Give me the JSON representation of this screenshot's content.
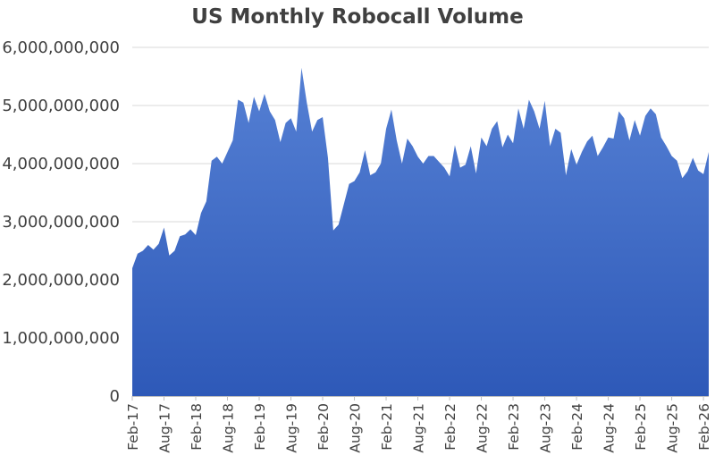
{
  "chart_data": {
    "type": "area",
    "title": "US Monthly Robocall Volume",
    "xlabel": "",
    "ylabel": "",
    "ylim": [
      0,
      6000000000
    ],
    "grid": true,
    "color": "#3f6dc4",
    "gradient": [
      "#5580d4",
      "#2e59b8"
    ],
    "ytick_values": [
      0,
      1000000000,
      2000000000,
      3000000000,
      4000000000,
      5000000000,
      6000000000
    ],
    "ytick_labels": [
      "0",
      "1,000,000,000",
      "2,000,000,000",
      "3,000,000,000",
      "4,000,000,000",
      "5,000,000,000",
      "6,000,000,000"
    ],
    "xtick_labels": [
      "Feb-17",
      "Aug-17",
      "Feb-18",
      "Aug-18",
      "Feb-19",
      "Aug-19",
      "Feb-20",
      "Aug-20",
      "Feb-21",
      "Aug-21",
      "Feb-22",
      "Aug-22",
      "Feb-23",
      "Aug-23",
      "Feb-24",
      "Aug-24",
      "Feb-25",
      "Aug-25",
      "Feb-26"
    ],
    "x_start": "Feb-17",
    "values": [
      2200000000,
      2450000000,
      2500000000,
      2600000000,
      2520000000,
      2620000000,
      2900000000,
      2420000000,
      2500000000,
      2750000000,
      2780000000,
      2870000000,
      2770000000,
      3150000000,
      3350000000,
      4050000000,
      4120000000,
      4000000000,
      4200000000,
      4400000000,
      5100000000,
      5050000000,
      4700000000,
      5150000000,
      4900000000,
      5200000000,
      4900000000,
      4750000000,
      4370000000,
      4700000000,
      4780000000,
      4550000000,
      5650000000,
      5050000000,
      4550000000,
      4750000000,
      4800000000,
      4100000000,
      2850000000,
      2950000000,
      3300000000,
      3650000000,
      3700000000,
      3850000000,
      4230000000,
      3800000000,
      3850000000,
      4000000000,
      4600000000,
      4930000000,
      4400000000,
      4000000000,
      4430000000,
      4300000000,
      4120000000,
      4000000000,
      4130000000,
      4130000000,
      4030000000,
      3930000000,
      3780000000,
      4320000000,
      3930000000,
      3980000000,
      4300000000,
      3830000000,
      4450000000,
      4300000000,
      4600000000,
      4730000000,
      4280000000,
      4500000000,
      4350000000,
      4950000000,
      4600000000,
      5100000000,
      4900000000,
      4600000000,
      5080000000,
      4300000000,
      4600000000,
      4530000000,
      3800000000,
      4250000000,
      3980000000,
      4200000000,
      4380000000,
      4480000000,
      4130000000,
      4280000000,
      4450000000,
      4430000000,
      4900000000,
      4780000000,
      4400000000,
      4750000000,
      4480000000,
      4820000000,
      4950000000,
      4850000000,
      4450000000,
      4300000000,
      4130000000,
      4050000000,
      3750000000,
      3870000000,
      4100000000,
      3880000000,
      3820000000,
      4200000000
    ]
  }
}
